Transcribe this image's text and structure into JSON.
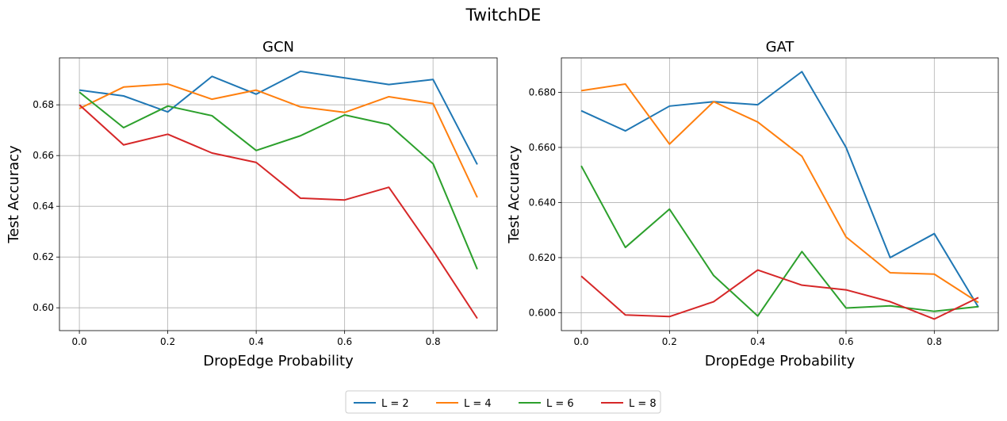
{
  "figure": {
    "suptitle": "TwitchDE"
  },
  "legend": {
    "placement": "bottom-center",
    "entries": [
      {
        "label": "L = 2",
        "color": "#1f77b4"
      },
      {
        "label": "L = 4",
        "color": "#ff7f0e"
      },
      {
        "label": "L = 6",
        "color": "#2ca02c"
      },
      {
        "label": "L = 8",
        "color": "#d62728"
      }
    ]
  },
  "chart_data": [
    {
      "type": "line",
      "title": "GCN",
      "xlabel": "DropEdge Probability",
      "ylabel": "Test Accuracy",
      "xlim": [
        -0.045,
        0.945
      ],
      "ylim": [
        0.591,
        0.6985
      ],
      "grid": true,
      "xticks": [
        0.0,
        0.2,
        0.4,
        0.6,
        0.8
      ],
      "xtick_labels": [
        "0.0",
        "0.2",
        "0.4",
        "0.6",
        "0.8"
      ],
      "yticks": [
        0.6,
        0.62,
        0.64,
        0.66,
        0.68
      ],
      "ytick_labels": [
        "0.60",
        "0.62",
        "0.64",
        "0.66",
        "0.68"
      ],
      "x": [
        0.0,
        0.1,
        0.2,
        0.3,
        0.4,
        0.5,
        0.6,
        0.7,
        0.8,
        0.9
      ],
      "series": [
        {
          "name": "L = 2",
          "color": "#1f77b4",
          "values": [
            0.6858,
            0.6835,
            0.6772,
            0.6912,
            0.6842,
            0.6932,
            0.6906,
            0.688,
            0.69,
            0.6565
          ]
        },
        {
          "name": "L = 4",
          "color": "#ff7f0e",
          "values": [
            0.6785,
            0.687,
            0.6882,
            0.6822,
            0.6858,
            0.6792,
            0.677,
            0.6832,
            0.6805,
            0.6435
          ]
        },
        {
          "name": "L = 6",
          "color": "#2ca02c",
          "values": [
            0.685,
            0.671,
            0.6795,
            0.6757,
            0.662,
            0.6678,
            0.676,
            0.6722,
            0.6568,
            0.6152
          ]
        },
        {
          "name": "L = 8",
          "color": "#d62728",
          "values": [
            0.68,
            0.6642,
            0.6684,
            0.661,
            0.6573,
            0.6432,
            0.6425,
            0.6475,
            0.6225,
            0.5958
          ]
        }
      ]
    },
    {
      "type": "line",
      "title": "GAT",
      "xlabel": "DropEdge Probability",
      "ylabel": "Test Accuracy",
      "xlim": [
        -0.045,
        0.945
      ],
      "ylim": [
        0.5935,
        0.6925
      ],
      "grid": true,
      "xticks": [
        0.0,
        0.2,
        0.4,
        0.6,
        0.8
      ],
      "xtick_labels": [
        "0.0",
        "0.2",
        "0.4",
        "0.6",
        "0.8"
      ],
      "yticks": [
        0.6,
        0.62,
        0.64,
        0.66,
        0.68
      ],
      "ytick_labels": [
        "0.600",
        "0.620",
        "0.640",
        "0.660",
        "0.680"
      ],
      "x": [
        0.0,
        0.1,
        0.2,
        0.3,
        0.4,
        0.5,
        0.6,
        0.7,
        0.8,
        0.9
      ],
      "series": [
        {
          "name": "L = 2",
          "color": "#1f77b4",
          "values": [
            0.6733,
            0.666,
            0.675,
            0.6766,
            0.6755,
            0.6875,
            0.66,
            0.62,
            0.6287,
            0.602
          ]
        },
        {
          "name": "L = 4",
          "color": "#ff7f0e",
          "values": [
            0.6806,
            0.683,
            0.6612,
            0.6766,
            0.6692,
            0.6568,
            0.6275,
            0.6145,
            0.614,
            0.6037
          ]
        },
        {
          "name": "L = 6",
          "color": "#2ca02c",
          "values": [
            0.6533,
            0.6237,
            0.6376,
            0.6135,
            0.5988,
            0.6222,
            0.6017,
            0.6025,
            0.6005,
            0.6022
          ]
        },
        {
          "name": "L = 8",
          "color": "#d62728",
          "values": [
            0.6133,
            0.5992,
            0.5986,
            0.604,
            0.6155,
            0.61,
            0.6083,
            0.604,
            0.5977,
            0.6055
          ]
        }
      ]
    }
  ]
}
